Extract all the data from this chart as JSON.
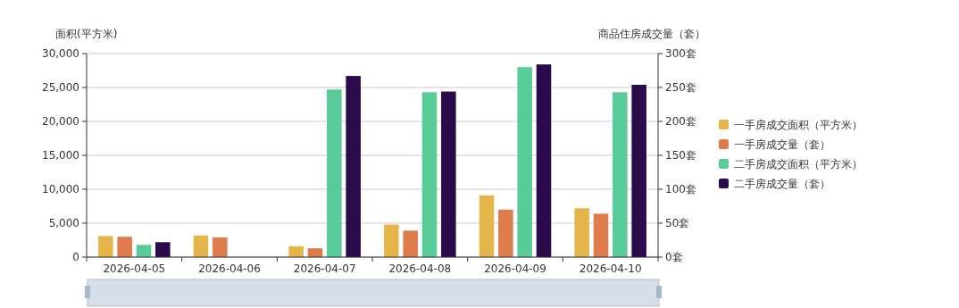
{
  "chart_data": {
    "type": "bar",
    "ylabel": "面积(平方米)",
    "y2label": "商品住房成交量（套）",
    "categories": [
      "2026-04-05",
      "2026-04-06",
      "2026-04-07",
      "2026-04-08",
      "2026-04-09",
      "2026-04-10"
    ],
    "series": [
      {
        "name": "一手房成交面积（平方米）",
        "color": "#e6b54a",
        "values": [
          3100,
          3200,
          1600,
          4800,
          9100,
          7200
        ]
      },
      {
        "name": "一手房成交量（套）",
        "color": "#e07b4c",
        "axis": "y2",
        "values": [
          30,
          29,
          13,
          39,
          70,
          64
        ]
      },
      {
        "name": "二手房成交面积（平方米）",
        "color": "#58cc98",
        "values": [
          1800,
          null,
          24700,
          24300,
          28000,
          24300
        ]
      },
      {
        "name": "二手房成交量（套）",
        "color": "#2a0a4a",
        "axis": "y2",
        "values": [
          22,
          null,
          267,
          244,
          284,
          254
        ]
      }
    ],
    "ylim": [
      0,
      30000
    ],
    "yticks": [
      {
        "value": 0,
        "label": "0"
      },
      {
        "value": 5000,
        "label": "5,000"
      },
      {
        "value": 10000,
        "label": "10,000"
      },
      {
        "value": 15000,
        "label": "15,000"
      },
      {
        "value": 20000,
        "label": "20,000"
      },
      {
        "value": 25000,
        "label": "25,000"
      },
      {
        "value": 30000,
        "label": "30,000"
      }
    ],
    "y2lim": [
      0,
      300
    ],
    "y2ticks": [
      {
        "value": 0,
        "label": "0套"
      },
      {
        "value": 50,
        "label": "50套"
      },
      {
        "value": 100,
        "label": "100套"
      },
      {
        "value": 150,
        "label": "150套"
      },
      {
        "value": 200,
        "label": "200套"
      },
      {
        "value": 250,
        "label": "250套"
      },
      {
        "value": 300,
        "label": "300套"
      }
    ],
    "grid": "y",
    "legend": "right"
  }
}
